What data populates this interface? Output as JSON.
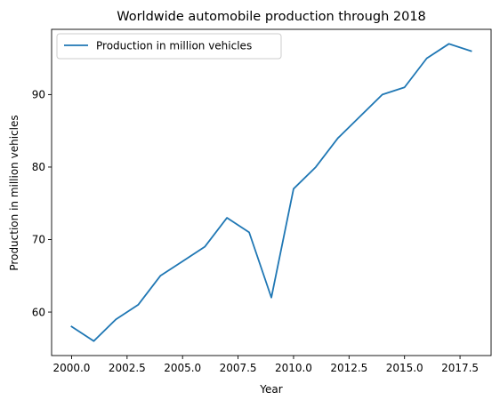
{
  "chart_data": {
    "type": "line",
    "title": "Worldwide automobile production through 2018",
    "xlabel": "Year",
    "ylabel": "Production in million vehicles",
    "xlim": [
      1999.1,
      2018.9
    ],
    "ylim": [
      54.0,
      99.0
    ],
    "x_ticks": [
      2000.0,
      2002.5,
      2005.0,
      2007.5,
      2010.0,
      2012.5,
      2015.0,
      2017.5
    ],
    "x_tick_labels": [
      "2000.0",
      "2002.5",
      "2005.0",
      "2007.5",
      "2010.0",
      "2012.5",
      "2015.0",
      "2017.5"
    ],
    "y_ticks": [
      60,
      70,
      80,
      90
    ],
    "y_tick_labels": [
      "60",
      "70",
      "80",
      "90"
    ],
    "grid": false,
    "legend_position": "top-left",
    "series": [
      {
        "name": "Production in million vehicles",
        "color": "#1f77b4",
        "x": [
          2000,
          2001,
          2002,
          2003,
          2004,
          2005,
          2006,
          2007,
          2008,
          2009,
          2010,
          2011,
          2012,
          2013,
          2014,
          2015,
          2016,
          2017,
          2018
        ],
        "y": [
          58,
          56,
          59,
          61,
          65,
          67,
          69,
          73,
          71,
          62,
          77,
          80,
          84,
          87,
          90,
          91,
          95,
          97,
          96
        ]
      }
    ]
  }
}
